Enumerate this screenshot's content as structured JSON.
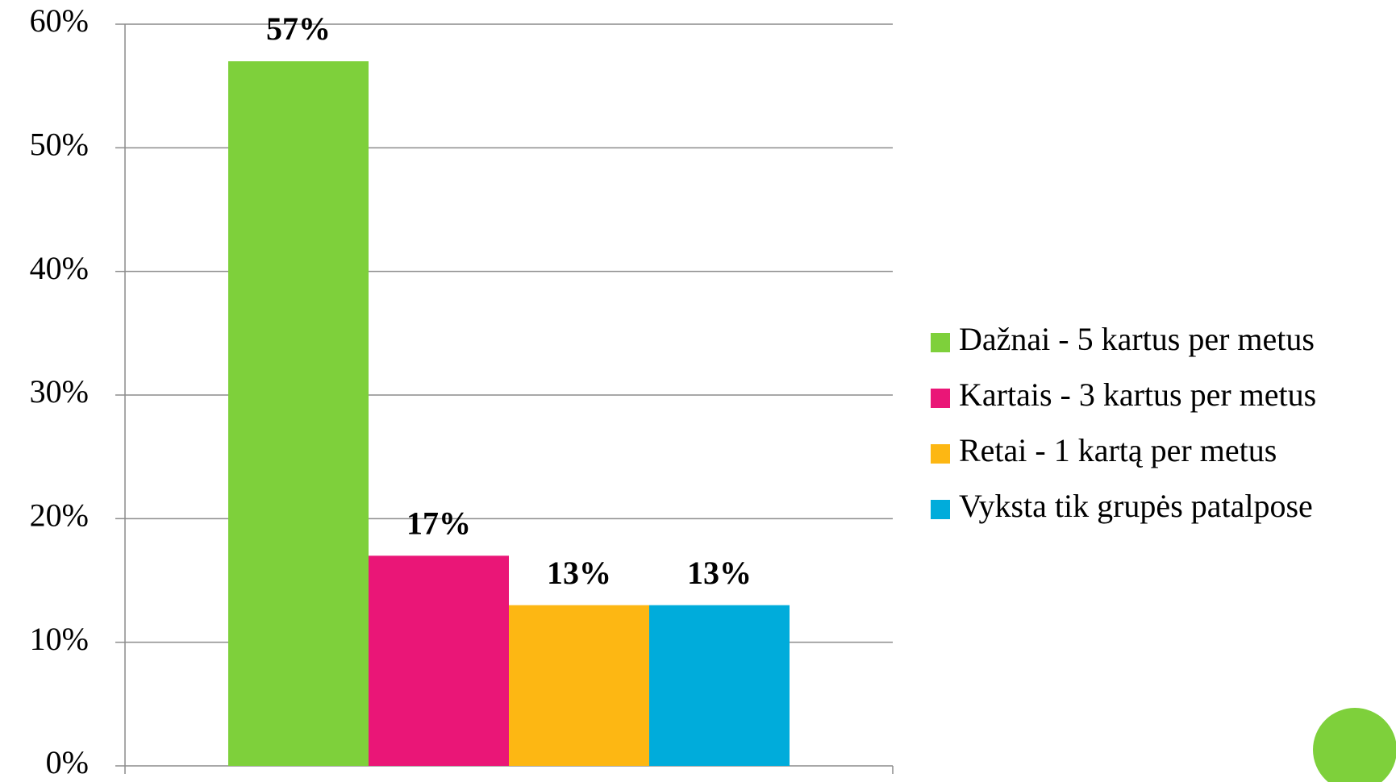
{
  "chart_data": {
    "type": "bar",
    "categories": [
      null
    ],
    "series": [
      {
        "name": "Dažnai - 5 kartus per metus",
        "color": "#7ed03b",
        "values": [
          57
        ],
        "value_labels": [
          "57%"
        ]
      },
      {
        "name": "Kartais - 3 kartus per metus",
        "color": "#ea1677",
        "values": [
          17
        ],
        "value_labels": [
          "17%"
        ]
      },
      {
        "name": "Retai - 1 kartą per metus",
        "color": "#fdb713",
        "values": [
          13
        ],
        "value_labels": [
          "13%"
        ]
      },
      {
        "name": "Vyksta tik grupės patalpose",
        "color": "#00acdb",
        "values": [
          13
        ],
        "value_labels": [
          "13%"
        ]
      }
    ],
    "ylim": [
      0,
      60
    ],
    "yticks": [
      {
        "value": 0,
        "label": "0%"
      },
      {
        "value": 10,
        "label": "10%"
      },
      {
        "value": 20,
        "label": "20%"
      },
      {
        "value": 30,
        "label": "30%"
      },
      {
        "value": 40,
        "label": "40%"
      },
      {
        "value": 50,
        "label": "50%"
      },
      {
        "value": 60,
        "label": "60%"
      }
    ],
    "grid": true,
    "legend": "right"
  }
}
